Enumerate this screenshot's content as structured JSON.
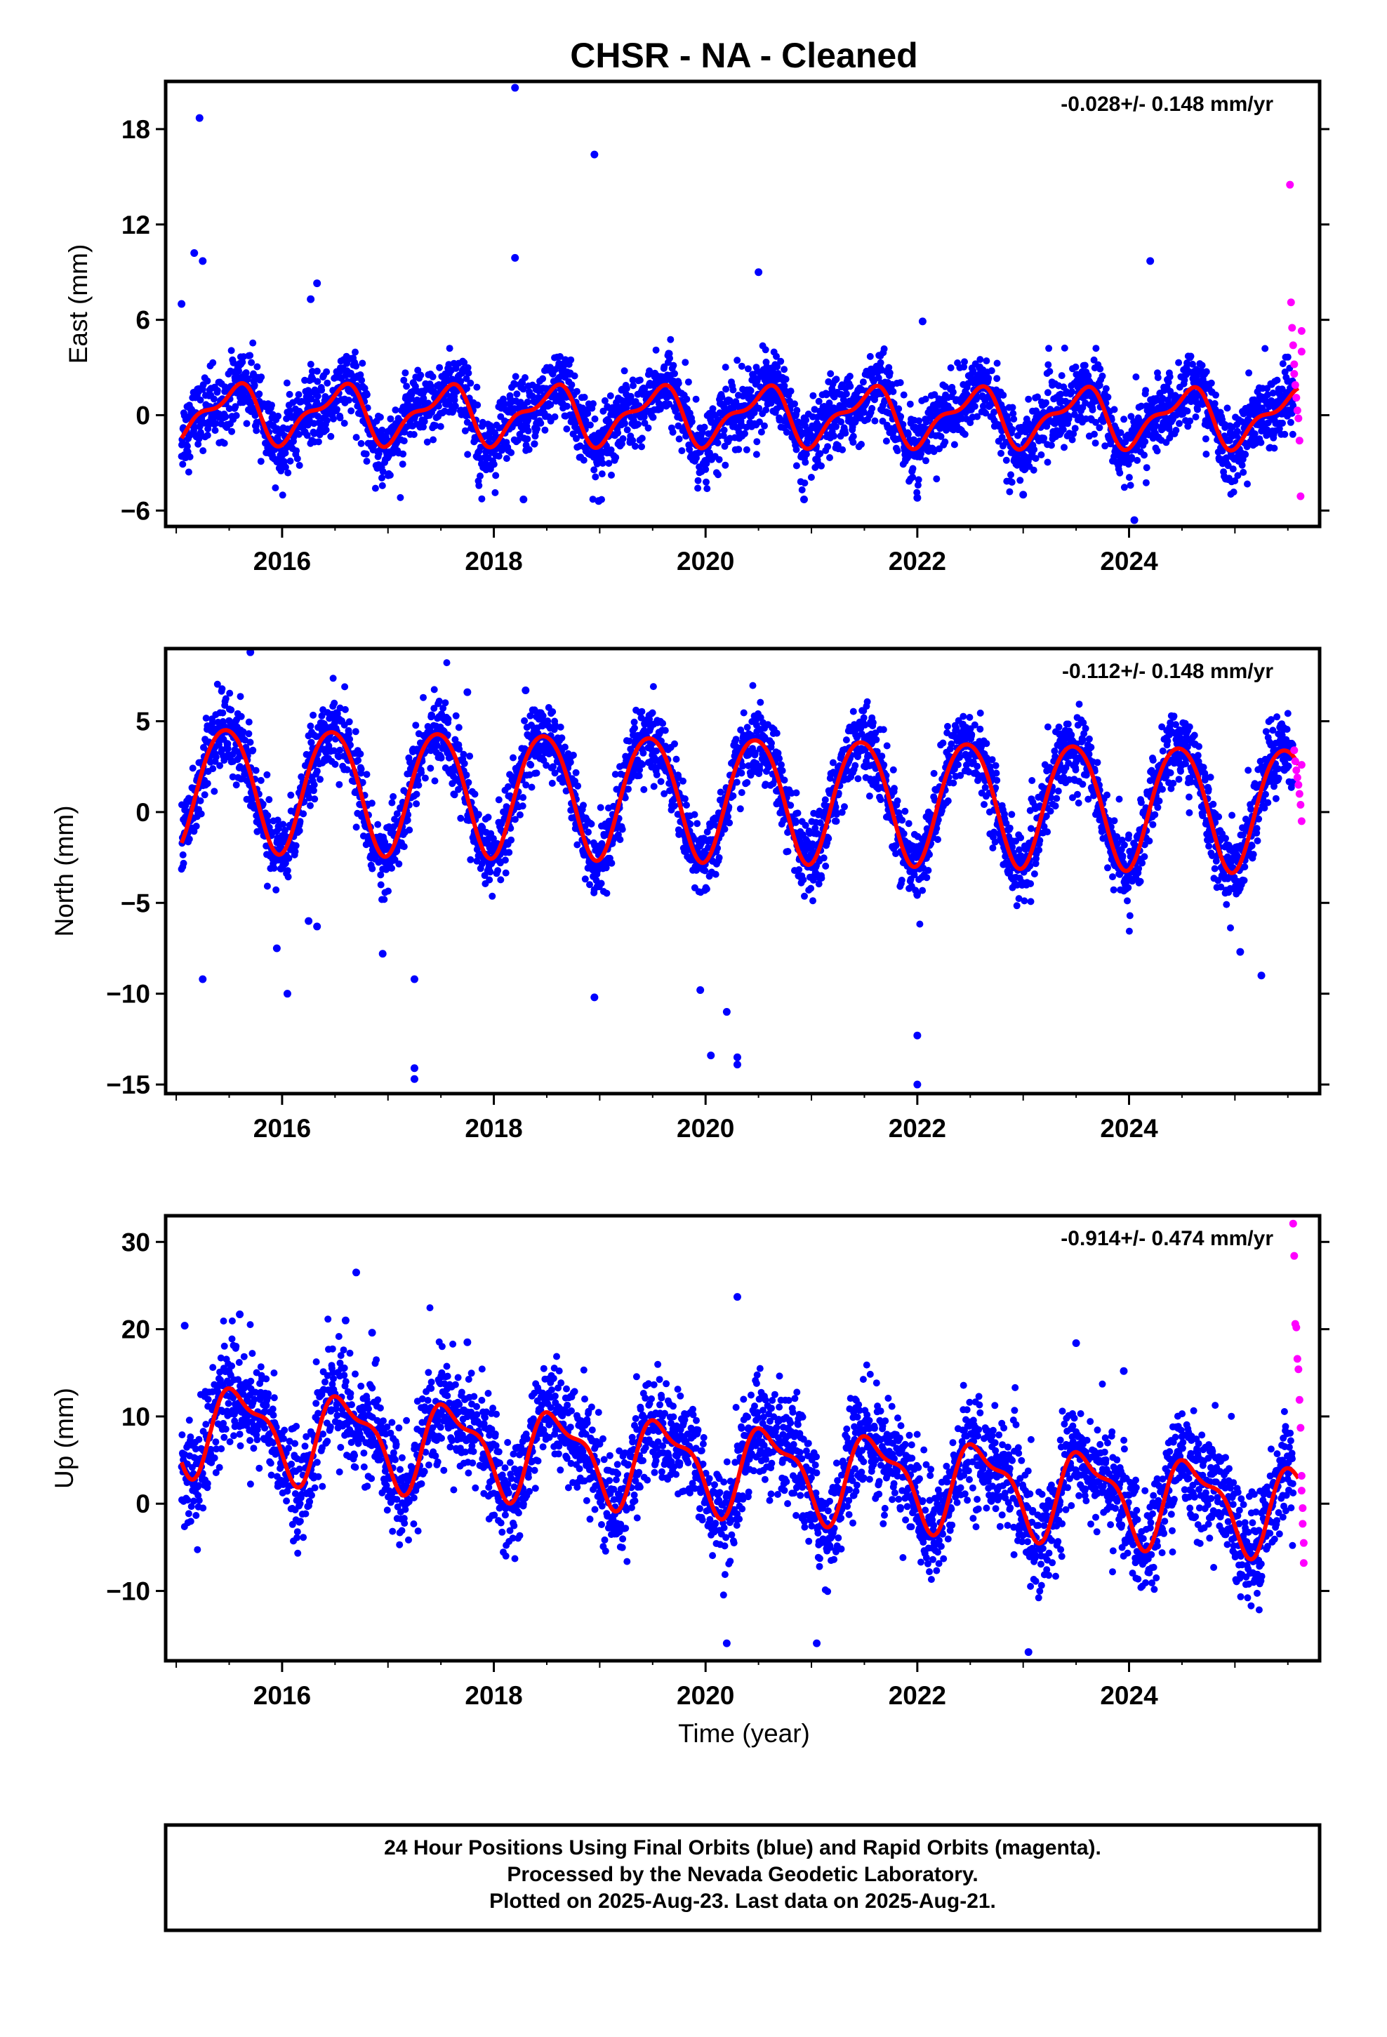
{
  "title": "CHSR  - NA - Cleaned",
  "xlabel": "Time (year)",
  "footer": {
    "lines": [
      "24 Hour Positions Using Final Orbits (blue) and Rapid Orbits (magenta).",
      "Processed by the Nevada Geodetic Laboratory.",
      "Plotted on 2025-Aug-23. Last data on 2025-Aug-21."
    ]
  },
  "colors": {
    "final_orbits": "#0000ff",
    "rapid_orbits": "#ff00ff",
    "model_fit": "#ff0000"
  },
  "chart_data": [
    {
      "type": "scatter",
      "ylabel": "East (mm)",
      "rate_text": "-0.028+/- 0.148 mm/yr",
      "xlim": [
        2014.9,
        2025.8
      ],
      "ylim": [
        -7,
        21
      ],
      "xticks": [
        2016,
        2018,
        2020,
        2022,
        2024
      ],
      "xtick_labels": [
        "2016",
        "2018",
        "2020",
        "2022",
        "2024"
      ],
      "yticks": [
        -6,
        0,
        6,
        12,
        18
      ],
      "ytick_labels": [
        "−6",
        "0",
        "6",
        "12",
        "18"
      ],
      "model": {
        "offset": 0.0,
        "rate": -0.028,
        "annual": 1.6,
        "phase": 0.28,
        "semiannual": 0.7,
        "semi_phase": 0.05
      },
      "final_orbits_noise_sd": 1.1,
      "outliers": [
        {
          "x": 2015.05,
          "y": 7.0
        },
        {
          "x": 2015.17,
          "y": 10.2
        },
        {
          "x": 2015.22,
          "y": 18.7
        },
        {
          "x": 2015.25,
          "y": 9.7
        },
        {
          "x": 2016.27,
          "y": 7.3
        },
        {
          "x": 2016.33,
          "y": 8.3
        },
        {
          "x": 2018.2,
          "y": 20.6
        },
        {
          "x": 2018.2,
          "y": 9.9
        },
        {
          "x": 2018.28,
          "y": -5.3
        },
        {
          "x": 2018.95,
          "y": 16.4
        },
        {
          "x": 2018.99,
          "y": -5.4
        },
        {
          "x": 2020.5,
          "y": 9.0
        },
        {
          "x": 2020.93,
          "y": -5.3
        },
        {
          "x": 2022.05,
          "y": 5.9
        },
        {
          "x": 2022.0,
          "y": -5.2
        },
        {
          "x": 2024.05,
          "y": -6.6
        },
        {
          "x": 2024.2,
          "y": 9.7
        },
        {
          "x": 2023.0,
          "y": -5.0
        }
      ],
      "rapid_orbits": [
        {
          "x": 2025.52,
          "y": 14.5
        },
        {
          "x": 2025.53,
          "y": 7.1
        },
        {
          "x": 2025.54,
          "y": 5.5
        },
        {
          "x": 2025.55,
          "y": 4.4
        },
        {
          "x": 2025.56,
          "y": 3.2
        },
        {
          "x": 2025.56,
          "y": 2.6
        },
        {
          "x": 2025.57,
          "y": 1.9
        },
        {
          "x": 2025.58,
          "y": 1.1
        },
        {
          "x": 2025.59,
          "y": 0.3
        },
        {
          "x": 2025.6,
          "y": -0.2
        },
        {
          "x": 2025.61,
          "y": -1.6
        },
        {
          "x": 2025.62,
          "y": -5.1
        },
        {
          "x": 2025.63,
          "y": 5.3
        },
        {
          "x": 2025.63,
          "y": 4.0
        }
      ]
    },
    {
      "type": "scatter",
      "ylabel": "North (mm)",
      "rate_text": "-0.112+/- 0.148 mm/yr",
      "xlim": [
        2014.9,
        2025.8
      ],
      "ylim": [
        -15.5,
        9
      ],
      "xticks": [
        2016,
        2018,
        2020,
        2022,
        2024
      ],
      "xtick_labels": [
        "2016",
        "2018",
        "2020",
        "2022",
        "2024"
      ],
      "yticks": [
        -15,
        -10,
        -5,
        0,
        5
      ],
      "ytick_labels": [
        "−15",
        "−10",
        "−5",
        "0",
        "5"
      ],
      "model": {
        "offset": 0.9,
        "rate": -0.112,
        "annual": 3.4,
        "phase": 0.22,
        "semiannual": 0.3,
        "semi_phase": 0.1
      },
      "final_orbits_noise_sd": 1.0,
      "outliers": [
        {
          "x": 2015.25,
          "y": -9.2
        },
        {
          "x": 2015.7,
          "y": 8.8
        },
        {
          "x": 2015.95,
          "y": -7.5
        },
        {
          "x": 2016.05,
          "y": -10.0
        },
        {
          "x": 2016.25,
          "y": -6.0
        },
        {
          "x": 2016.33,
          "y": -6.3
        },
        {
          "x": 2016.95,
          "y": -7.8
        },
        {
          "x": 2017.25,
          "y": -9.2
        },
        {
          "x": 2017.25,
          "y": -14.1
        },
        {
          "x": 2017.25,
          "y": -14.7
        },
        {
          "x": 2017.75,
          "y": 6.6
        },
        {
          "x": 2018.3,
          "y": 6.7
        },
        {
          "x": 2018.95,
          "y": -10.2
        },
        {
          "x": 2019.95,
          "y": -9.8
        },
        {
          "x": 2020.05,
          "y": -13.4
        },
        {
          "x": 2020.2,
          "y": -11.0
        },
        {
          "x": 2020.3,
          "y": -13.5
        },
        {
          "x": 2020.3,
          "y": -13.9
        },
        {
          "x": 2022.0,
          "y": -12.3
        },
        {
          "x": 2022.0,
          "y": -15.0
        },
        {
          "x": 2025.05,
          "y": -7.7
        },
        {
          "x": 2025.25,
          "y": -9.0
        }
      ],
      "rapid_orbits": [
        {
          "x": 2025.56,
          "y": 3.4
        },
        {
          "x": 2025.57,
          "y": 2.8
        },
        {
          "x": 2025.58,
          "y": 2.3
        },
        {
          "x": 2025.59,
          "y": 1.9
        },
        {
          "x": 2025.6,
          "y": 1.5
        },
        {
          "x": 2025.61,
          "y": 1.0
        },
        {
          "x": 2025.62,
          "y": 0.4
        },
        {
          "x": 2025.63,
          "y": -0.5
        },
        {
          "x": 2025.63,
          "y": 2.6
        }
      ]
    },
    {
      "type": "scatter",
      "ylabel": "Up (mm)",
      "rate_text": "-0.914+/- 0.474 mm/yr",
      "xlim": [
        2014.9,
        2025.8
      ],
      "ylim": [
        -18,
        33
      ],
      "xticks": [
        2016,
        2018,
        2020,
        2022,
        2024
      ],
      "xtick_labels": [
        "2016",
        "2018",
        "2020",
        "2022",
        "2024"
      ],
      "yticks": [
        -10,
        0,
        10,
        20,
        30
      ],
      "ytick_labels": [
        "−10",
        "0",
        "10",
        "20",
        "30"
      ],
      "model": {
        "offset": 4.5,
        "rate": -0.914,
        "annual": 4.6,
        "phase": 0.36,
        "semiannual": 1.8,
        "semi_phase": 0.3
      },
      "final_orbits_noise_sd": 3.0,
      "outliers": [
        {
          "x": 2015.08,
          "y": 20.4
        },
        {
          "x": 2015.6,
          "y": 21.7
        },
        {
          "x": 2016.6,
          "y": 21.0
        },
        {
          "x": 2016.7,
          "y": 26.5
        },
        {
          "x": 2016.85,
          "y": 19.6
        },
        {
          "x": 2017.75,
          "y": 18.5
        },
        {
          "x": 2020.3,
          "y": 23.7
        },
        {
          "x": 2020.2,
          "y": -16.0
        },
        {
          "x": 2021.05,
          "y": -16.0
        },
        {
          "x": 2023.05,
          "y": -17.0
        },
        {
          "x": 2023.5,
          "y": 18.4
        },
        {
          "x": 2023.95,
          "y": 15.2
        }
      ],
      "rapid_orbits": [
        {
          "x": 2025.55,
          "y": 32.1
        },
        {
          "x": 2025.56,
          "y": 28.4
        },
        {
          "x": 2025.57,
          "y": 20.6
        },
        {
          "x": 2025.58,
          "y": 20.2
        },
        {
          "x": 2025.59,
          "y": 16.6
        },
        {
          "x": 2025.6,
          "y": 15.4
        },
        {
          "x": 2025.61,
          "y": 11.9
        },
        {
          "x": 2025.62,
          "y": 8.7
        },
        {
          "x": 2025.63,
          "y": 3.2
        },
        {
          "x": 2025.63,
          "y": 1.5
        },
        {
          "x": 2025.64,
          "y": -0.5
        },
        {
          "x": 2025.64,
          "y": -2.3
        },
        {
          "x": 2025.65,
          "y": -4.5
        },
        {
          "x": 2025.65,
          "y": -6.8
        }
      ]
    }
  ]
}
